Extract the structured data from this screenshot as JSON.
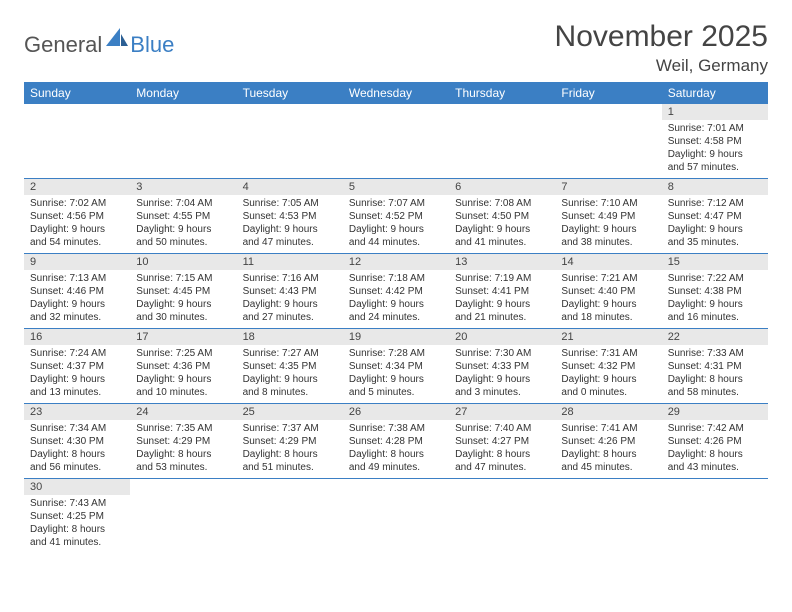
{
  "logo": {
    "text1": "General",
    "text2": "Blue"
  },
  "title": "November 2025",
  "location": "Weil, Germany",
  "weekdays": [
    "Sunday",
    "Monday",
    "Tuesday",
    "Wednesday",
    "Thursday",
    "Friday",
    "Saturday"
  ],
  "colors": {
    "header_bg": "#3b7fc4",
    "header_text": "#ffffff",
    "daynum_bg": "#e8e8e8",
    "border": "#3b7fc4",
    "text": "#333333"
  },
  "weeks": [
    [
      {
        "n": "",
        "body": ""
      },
      {
        "n": "",
        "body": ""
      },
      {
        "n": "",
        "body": ""
      },
      {
        "n": "",
        "body": ""
      },
      {
        "n": "",
        "body": ""
      },
      {
        "n": "",
        "body": ""
      },
      {
        "n": "1",
        "sunrise": "Sunrise: 7:01 AM",
        "sunset": "Sunset: 4:58 PM",
        "daylight": "Daylight: 9 hours and 57 minutes."
      }
    ],
    [
      {
        "n": "2",
        "sunrise": "Sunrise: 7:02 AM",
        "sunset": "Sunset: 4:56 PM",
        "daylight": "Daylight: 9 hours and 54 minutes."
      },
      {
        "n": "3",
        "sunrise": "Sunrise: 7:04 AM",
        "sunset": "Sunset: 4:55 PM",
        "daylight": "Daylight: 9 hours and 50 minutes."
      },
      {
        "n": "4",
        "sunrise": "Sunrise: 7:05 AM",
        "sunset": "Sunset: 4:53 PM",
        "daylight": "Daylight: 9 hours and 47 minutes."
      },
      {
        "n": "5",
        "sunrise": "Sunrise: 7:07 AM",
        "sunset": "Sunset: 4:52 PM",
        "daylight": "Daylight: 9 hours and 44 minutes."
      },
      {
        "n": "6",
        "sunrise": "Sunrise: 7:08 AM",
        "sunset": "Sunset: 4:50 PM",
        "daylight": "Daylight: 9 hours and 41 minutes."
      },
      {
        "n": "7",
        "sunrise": "Sunrise: 7:10 AM",
        "sunset": "Sunset: 4:49 PM",
        "daylight": "Daylight: 9 hours and 38 minutes."
      },
      {
        "n": "8",
        "sunrise": "Sunrise: 7:12 AM",
        "sunset": "Sunset: 4:47 PM",
        "daylight": "Daylight: 9 hours and 35 minutes."
      }
    ],
    [
      {
        "n": "9",
        "sunrise": "Sunrise: 7:13 AM",
        "sunset": "Sunset: 4:46 PM",
        "daylight": "Daylight: 9 hours and 32 minutes."
      },
      {
        "n": "10",
        "sunrise": "Sunrise: 7:15 AM",
        "sunset": "Sunset: 4:45 PM",
        "daylight": "Daylight: 9 hours and 30 minutes."
      },
      {
        "n": "11",
        "sunrise": "Sunrise: 7:16 AM",
        "sunset": "Sunset: 4:43 PM",
        "daylight": "Daylight: 9 hours and 27 minutes."
      },
      {
        "n": "12",
        "sunrise": "Sunrise: 7:18 AM",
        "sunset": "Sunset: 4:42 PM",
        "daylight": "Daylight: 9 hours and 24 minutes."
      },
      {
        "n": "13",
        "sunrise": "Sunrise: 7:19 AM",
        "sunset": "Sunset: 4:41 PM",
        "daylight": "Daylight: 9 hours and 21 minutes."
      },
      {
        "n": "14",
        "sunrise": "Sunrise: 7:21 AM",
        "sunset": "Sunset: 4:40 PM",
        "daylight": "Daylight: 9 hours and 18 minutes."
      },
      {
        "n": "15",
        "sunrise": "Sunrise: 7:22 AM",
        "sunset": "Sunset: 4:38 PM",
        "daylight": "Daylight: 9 hours and 16 minutes."
      }
    ],
    [
      {
        "n": "16",
        "sunrise": "Sunrise: 7:24 AM",
        "sunset": "Sunset: 4:37 PM",
        "daylight": "Daylight: 9 hours and 13 minutes."
      },
      {
        "n": "17",
        "sunrise": "Sunrise: 7:25 AM",
        "sunset": "Sunset: 4:36 PM",
        "daylight": "Daylight: 9 hours and 10 minutes."
      },
      {
        "n": "18",
        "sunrise": "Sunrise: 7:27 AM",
        "sunset": "Sunset: 4:35 PM",
        "daylight": "Daylight: 9 hours and 8 minutes."
      },
      {
        "n": "19",
        "sunrise": "Sunrise: 7:28 AM",
        "sunset": "Sunset: 4:34 PM",
        "daylight": "Daylight: 9 hours and 5 minutes."
      },
      {
        "n": "20",
        "sunrise": "Sunrise: 7:30 AM",
        "sunset": "Sunset: 4:33 PM",
        "daylight": "Daylight: 9 hours and 3 minutes."
      },
      {
        "n": "21",
        "sunrise": "Sunrise: 7:31 AM",
        "sunset": "Sunset: 4:32 PM",
        "daylight": "Daylight: 9 hours and 0 minutes."
      },
      {
        "n": "22",
        "sunrise": "Sunrise: 7:33 AM",
        "sunset": "Sunset: 4:31 PM",
        "daylight": "Daylight: 8 hours and 58 minutes."
      }
    ],
    [
      {
        "n": "23",
        "sunrise": "Sunrise: 7:34 AM",
        "sunset": "Sunset: 4:30 PM",
        "daylight": "Daylight: 8 hours and 56 minutes."
      },
      {
        "n": "24",
        "sunrise": "Sunrise: 7:35 AM",
        "sunset": "Sunset: 4:29 PM",
        "daylight": "Daylight: 8 hours and 53 minutes."
      },
      {
        "n": "25",
        "sunrise": "Sunrise: 7:37 AM",
        "sunset": "Sunset: 4:29 PM",
        "daylight": "Daylight: 8 hours and 51 minutes."
      },
      {
        "n": "26",
        "sunrise": "Sunrise: 7:38 AM",
        "sunset": "Sunset: 4:28 PM",
        "daylight": "Daylight: 8 hours and 49 minutes."
      },
      {
        "n": "27",
        "sunrise": "Sunrise: 7:40 AM",
        "sunset": "Sunset: 4:27 PM",
        "daylight": "Daylight: 8 hours and 47 minutes."
      },
      {
        "n": "28",
        "sunrise": "Sunrise: 7:41 AM",
        "sunset": "Sunset: 4:26 PM",
        "daylight": "Daylight: 8 hours and 45 minutes."
      },
      {
        "n": "29",
        "sunrise": "Sunrise: 7:42 AM",
        "sunset": "Sunset: 4:26 PM",
        "daylight": "Daylight: 8 hours and 43 minutes."
      }
    ],
    [
      {
        "n": "30",
        "sunrise": "Sunrise: 7:43 AM",
        "sunset": "Sunset: 4:25 PM",
        "daylight": "Daylight: 8 hours and 41 minutes."
      },
      {
        "n": "",
        "body": ""
      },
      {
        "n": "",
        "body": ""
      },
      {
        "n": "",
        "body": ""
      },
      {
        "n": "",
        "body": ""
      },
      {
        "n": "",
        "body": ""
      },
      {
        "n": "",
        "body": ""
      }
    ]
  ]
}
